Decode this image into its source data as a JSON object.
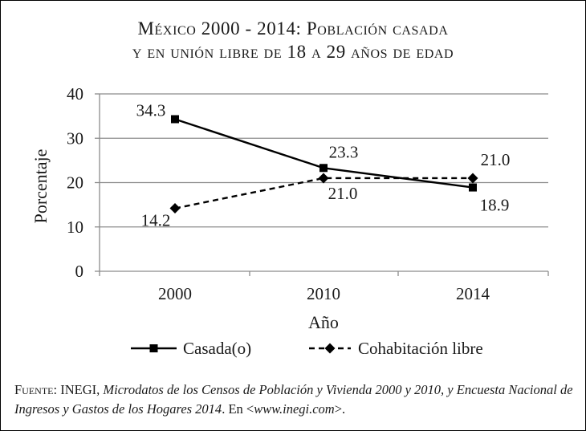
{
  "chart_data": {
    "type": "line",
    "title_lines": [
      "México 2000 - 2014: Población casada",
      "y en unión libre de 18 a 29 años de edad"
    ],
    "xlabel": "Año",
    "ylabel": "Porcentaje",
    "categories": [
      "2000",
      "2010",
      "2014"
    ],
    "ylim": [
      0,
      40
    ],
    "yticks": [
      "0",
      "10",
      "20",
      "30",
      "40"
    ],
    "grid": "horizontal",
    "legend_position": "bottom",
    "series": [
      {
        "name": "Casada(o)",
        "values": [
          34.3,
          23.3,
          18.9
        ],
        "labels": [
          "34.3",
          "23.3",
          "18.9"
        ],
        "line_style": "solid",
        "marker": "square",
        "color": "#000000"
      },
      {
        "name": "Cohabitación libre",
        "values": [
          14.2,
          21.0,
          21.0
        ],
        "labels": [
          "14.2",
          "21.0",
          "21.0"
        ],
        "line_style": "dashed",
        "marker": "diamond",
        "color": "#000000"
      }
    ]
  },
  "source": {
    "lead": "Fuente: INEGI,",
    "italic": "Microdatos de los Censos de Población y Vivienda 2000 y 2010, y Encuesta Nacional de Ingresos y Gastos de los Hogares 2014",
    "tail": ". En <",
    "url": "www.inegi.com",
    "end": ">."
  }
}
